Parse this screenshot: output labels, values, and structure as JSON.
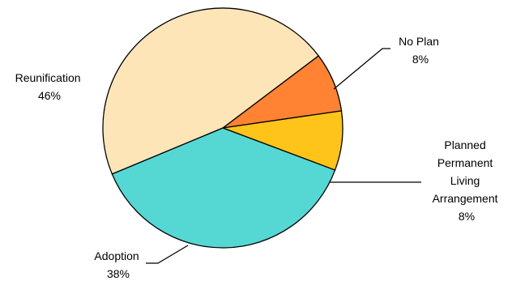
{
  "chart_data": {
    "type": "pie",
    "title": "",
    "slices": [
      {
        "label": "Reunification",
        "pct_text": "46%",
        "value": 46,
        "color": "#FDE5B8"
      },
      {
        "label": "No Plan",
        "pct_text": "8%",
        "value": 8,
        "color": "#FF8333"
      },
      {
        "label": "Planned Permanent Living Arrangement",
        "label_lines": [
          "Planned",
          "Permanent",
          "Living",
          "Arrangement"
        ],
        "pct_text": "8%",
        "value": 8,
        "color": "#FFC41A"
      },
      {
        "label": "Adoption",
        "pct_text": "38%",
        "value": 38,
        "color": "#55D8D4"
      }
    ]
  }
}
